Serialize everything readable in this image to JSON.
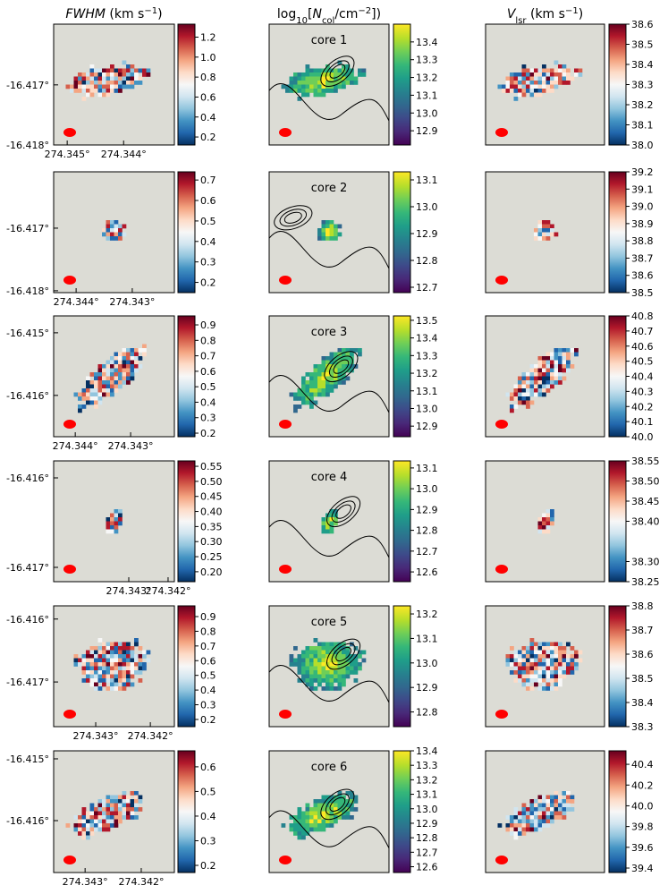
{
  "chart_data": [
    {
      "type": "heatmap",
      "title": [
        {
          "text": "FWHM",
          "style": "italic"
        },
        {
          "text": " (km s"
        },
        {
          "text": "−1",
          "style": "sup"
        },
        {
          "text": ")"
        }
      ],
      "cmap": "RdBu_r",
      "xlim": [
        274.34524,
        274.3431
      ],
      "ylim": [
        -16.418,
        -16.41599
      ],
      "xticks": [
        {
          "value": 274.345,
          "label": "274.345°"
        },
        {
          "value": 274.344,
          "label": "274.344°"
        }
      ],
      "yticks": [
        {
          "value": -16.417,
          "label": "-16.417°"
        },
        {
          "value": -16.418,
          "label": "-16.418°"
        }
      ],
      "colorbar": {
        "lim": [
          0.12,
          1.33
        ],
        "ticks": [
          0.2,
          0.4,
          0.6,
          0.8,
          {
            "value": 1,
            "label": "1.0"
          },
          1.2
        ]
      }
    },
    {
      "type": "heatmap",
      "title": [
        {
          "text": "log"
        },
        {
          "text": "10",
          "style": "sub"
        },
        {
          "text": "["
        },
        {
          "text": "N",
          "style": "italic"
        },
        {
          "text": "col",
          "style": "sub"
        },
        {
          "text": "/cm"
        },
        {
          "text": "−2",
          "style": "sup"
        },
        {
          "text": "])"
        }
      ],
      "cmap": "viridis",
      "annotation": "core 1",
      "colorbar": {
        "lim": [
          12.82,
          13.5
        ],
        "ticks": [
          12.9,
          {
            "value": 13,
            "label": "13.0"
          },
          13.1,
          13.2,
          13.3,
          13.4
        ]
      }
    },
    {
      "type": "heatmap",
      "title": [
        {
          "text": "V",
          "style": "italic"
        },
        {
          "text": "lsr",
          "style": "sub"
        },
        {
          "text": " (km s"
        },
        {
          "text": "−1",
          "style": "sup"
        },
        {
          "text": ")"
        }
      ],
      "cmap": "RdBu_r",
      "colorbar": {
        "lim": [
          38.0,
          38.6
        ],
        "ticks": [
          {
            "value": 38,
            "label": "38.0"
          },
          38.1,
          38.2,
          38.3,
          38.4,
          38.5,
          38.6
        ]
      }
    },
    {
      "type": "heatmap",
      "cmap": "RdBu_r",
      "xlim": [
        274.3444,
        274.34225
      ],
      "ylim": [
        -16.41803,
        -16.4161
      ],
      "xticks": [
        {
          "value": 274.344,
          "label": "274.344°"
        },
        {
          "value": 274.343,
          "label": "274.343°"
        }
      ],
      "yticks": [
        {
          "value": -16.417,
          "label": "-16.417°"
        },
        {
          "value": -16.418,
          "label": "-16.418°"
        }
      ],
      "colorbar": {
        "lim": [
          0.15,
          0.74
        ],
        "ticks": [
          0.2,
          0.3,
          0.4,
          0.5,
          0.6,
          0.7
        ]
      }
    },
    {
      "type": "heatmap",
      "cmap": "viridis",
      "annotation": "core 2",
      "colorbar": {
        "lim": [
          12.68,
          13.13
        ],
        "ticks": [
          12.7,
          12.8,
          12.9,
          {
            "value": 13,
            "label": "13.0"
          },
          13.1
        ]
      }
    },
    {
      "type": "heatmap",
      "cmap": "RdBu_r",
      "colorbar": {
        "lim": [
          38.5,
          39.2
        ],
        "ticks": [
          38.5,
          38.6,
          38.7,
          38.8,
          38.9,
          {
            "value": 39,
            "label": "39.0"
          },
          39.1,
          39.2
        ]
      }
    },
    {
      "type": "heatmap",
      "cmap": "RdBu_r",
      "xlim": [
        274.34439,
        274.34221
      ],
      "ylim": [
        -16.41666,
        -16.41473
      ],
      "xticks": [
        {
          "value": 274.344,
          "label": "274.344°"
        },
        {
          "value": 274.343,
          "label": "274.343°"
        }
      ],
      "yticks": [
        {
          "value": -16.415,
          "label": "-16.415°"
        },
        {
          "value": -16.416,
          "label": "-16.416°"
        }
      ],
      "colorbar": {
        "lim": [
          0.177,
          0.958
        ],
        "ticks": [
          0.2,
          0.3,
          0.4,
          0.5,
          0.6,
          0.7,
          0.8,
          0.9
        ]
      }
    },
    {
      "type": "heatmap",
      "cmap": "viridis",
      "annotation": "core 3",
      "colorbar": {
        "lim": [
          12.84,
          13.525
        ],
        "ticks": [
          12.9,
          {
            "value": 13,
            "label": "13.0"
          },
          13.1,
          13.2,
          13.3,
          13.4,
          13.5
        ]
      }
    },
    {
      "type": "heatmap",
      "cmap": "RdBu_r",
      "colorbar": {
        "lim": [
          40.0,
          40.8
        ],
        "ticks": [
          {
            "value": 40,
            "label": "40.0"
          },
          40.1,
          40.2,
          40.3,
          40.4,
          40.5,
          40.6,
          40.7,
          40.8
        ]
      }
    },
    {
      "type": "heatmap",
      "cmap": "RdBu_r",
      "xlim": [
        274.34491,
        274.34184
      ],
      "ylim": [
        -16.41716,
        -16.41581
      ],
      "xticks": [
        {
          "value": 274.343,
          "label": "274.343°"
        },
        {
          "value": 274.342,
          "label": "274.342°"
        }
      ],
      "yticks": [
        {
          "value": -16.416,
          "label": "-16.416°"
        },
        {
          "value": -16.417,
          "label": "-16.417°"
        }
      ],
      "colorbar": {
        "lim": [
          0.167,
          0.568
        ],
        "ticks": [
          {
            "value": 0.2,
            "label": "0.20"
          },
          0.25,
          {
            "value": 0.3,
            "label": "0.30"
          },
          0.35,
          {
            "value": 0.4,
            "label": "0.40"
          },
          0.45,
          {
            "value": 0.5,
            "label": "0.50"
          },
          0.55
        ]
      }
    },
    {
      "type": "heatmap",
      "cmap": "viridis",
      "annotation": "core 4",
      "colorbar": {
        "lim": [
          12.553,
          13.134
        ],
        "ticks": [
          12.6,
          12.7,
          12.8,
          12.9,
          {
            "value": 13,
            "label": "13.0"
          },
          13.1
        ]
      }
    },
    {
      "type": "heatmap",
      "cmap": "RdBu_r",
      "colorbar": {
        "lim": [
          38.25,
          38.55
        ],
        "ticks": [
          38.25,
          {
            "value": 38.3,
            "label": "38.30"
          },
          {
            "value": 38.4,
            "label": "38.40"
          },
          38.45,
          {
            "value": 38.5,
            "label": "38.50"
          },
          38.55
        ]
      }
    },
    {
      "type": "heatmap",
      "cmap": "RdBu_r",
      "xlim": [
        274.34377,
        274.34156
      ],
      "ylim": [
        -16.41771,
        -16.41579
      ],
      "xticks": [
        {
          "value": 274.343,
          "label": "274.343°"
        },
        {
          "value": 274.342,
          "label": "274.342°"
        }
      ],
      "yticks": [
        {
          "value": -16.416,
          "label": "-16.416°"
        },
        {
          "value": -16.417,
          "label": "-16.417°"
        }
      ],
      "colorbar": {
        "lim": [
          0.151,
          0.973
        ],
        "ticks": [
          0.2,
          0.3,
          0.4,
          0.5,
          0.6,
          0.7,
          0.8,
          0.9
        ]
      }
    },
    {
      "type": "heatmap",
      "cmap": "viridis",
      "annotation": "core 5",
      "colorbar": {
        "lim": [
          12.74,
          13.233
        ],
        "ticks": [
          12.8,
          12.9,
          {
            "value": 13,
            "label": "13.0"
          },
          13.1,
          13.2
        ]
      }
    },
    {
      "type": "heatmap",
      "cmap": "RdBu_r",
      "colorbar": {
        "lim": [
          38.3,
          38.8
        ],
        "ticks": [
          38.3,
          38.4,
          38.5,
          38.6,
          38.7,
          38.8
        ]
      }
    },
    {
      "type": "heatmap",
      "cmap": "RdBu_r",
      "xlim": [
        274.34356,
        274.34141
      ],
      "ylim": [
        -16.41684,
        -16.41487
      ],
      "xticks": [
        {
          "value": 274.343,
          "label": "274.343°"
        },
        {
          "value": 274.342,
          "label": "274.342°"
        }
      ],
      "yticks": [
        {
          "value": -16.415,
          "label": "-16.415°"
        },
        {
          "value": -16.416,
          "label": "-16.416°"
        }
      ],
      "colorbar": {
        "lim": [
          0.171,
          0.665
        ],
        "ticks": [
          0.2,
          0.3,
          0.4,
          0.5,
          0.6
        ]
      }
    },
    {
      "type": "heatmap",
      "cmap": "viridis",
      "annotation": "core 6",
      "colorbar": {
        "lim": [
          12.56,
          13.4
        ],
        "ticks": [
          12.6,
          12.7,
          12.8,
          12.9,
          {
            "value": 13,
            "label": "13.0"
          },
          13.1,
          13.2,
          13.3,
          13.4
        ]
      }
    },
    {
      "type": "heatmap",
      "cmap": "RdBu_r",
      "colorbar": {
        "lim": [
          39.357,
          40.53
        ],
        "ticks": [
          39.4,
          39.6,
          39.8,
          {
            "value": 40,
            "label": "40.0"
          },
          40.2,
          40.4
        ]
      }
    }
  ]
}
